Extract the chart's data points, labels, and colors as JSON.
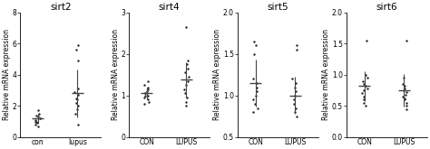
{
  "panels": [
    {
      "title": "sirt2",
      "xlabel_con": "con",
      "xlabel_lupus": "lupus",
      "ylim": [
        0,
        8
      ],
      "yticks": [
        0,
        2,
        4,
        6,
        8
      ],
      "ylabel": "Relative mRNA expression",
      "con_points": [
        1.7,
        1.5,
        1.4,
        1.3,
        1.2,
        1.2,
        1.1,
        1.0,
        1.0,
        0.9,
        0.8,
        0.7
      ],
      "lupus_points": [
        5.9,
        5.6,
        4.9,
        3.1,
        2.9,
        2.7,
        2.5,
        2.4,
        2.2,
        2.0,
        1.8,
        1.5,
        0.8
      ],
      "con_mean": 1.2,
      "con_sd": 0.28,
      "lupus_mean": 2.8,
      "lupus_sd": 1.55
    },
    {
      "title": "sirt4",
      "xlabel_con": "CON",
      "xlabel_lupus": "LUPUS",
      "ylim": [
        0,
        3
      ],
      "yticks": [
        0,
        1,
        2,
        3
      ],
      "ylabel": "Relative mRNA expression",
      "con_points": [
        1.35,
        1.25,
        1.2,
        1.15,
        1.1,
        1.05,
        1.05,
        1.0,
        1.0,
        0.95,
        0.9,
        0.85,
        0.8
      ],
      "lupus_points": [
        2.65,
        1.85,
        1.75,
        1.65,
        1.55,
        1.45,
        1.35,
        1.25,
        1.15,
        1.05,
        0.95,
        0.85,
        0.75
      ],
      "con_mean": 1.05,
      "con_sd": 0.15,
      "lupus_mean": 1.38,
      "lupus_sd": 0.42
    },
    {
      "title": "sirt5",
      "xlabel_con": "CON",
      "xlabel_lupus": "LUPUS",
      "ylim": [
        0.5,
        2.0
      ],
      "yticks": [
        0.5,
        1.0,
        1.5,
        2.0
      ],
      "ylabel": "Relative mRNA expression",
      "con_points": [
        1.65,
        1.6,
        1.5,
        1.2,
        1.15,
        1.1,
        1.05,
        1.0,
        0.95,
        0.9,
        0.85,
        0.8
      ],
      "lupus_points": [
        1.6,
        1.55,
        1.2,
        1.15,
        1.1,
        1.05,
        1.0,
        0.95,
        0.9,
        0.85,
        0.8,
        0.75
      ],
      "con_mean": 1.15,
      "con_sd": 0.28,
      "lupus_mean": 1.0,
      "lupus_sd": 0.22
    },
    {
      "title": "sirt6",
      "xlabel_con": "CON",
      "xlabel_lupus": "LUPUS",
      "ylim": [
        0.0,
        2.0
      ],
      "yticks": [
        0.0,
        0.5,
        1.0,
        1.5,
        2.0
      ],
      "ylabel": "Relative mRNA expression",
      "con_points": [
        1.55,
        1.0,
        0.95,
        0.9,
        0.85,
        0.82,
        0.78,
        0.75,
        0.7,
        0.65,
        0.6,
        0.55,
        0.5
      ],
      "lupus_points": [
        1.55,
        0.95,
        0.85,
        0.82,
        0.78,
        0.75,
        0.72,
        0.68,
        0.65,
        0.62,
        0.6,
        0.55,
        0.5,
        0.45
      ],
      "con_mean": 0.82,
      "con_sd": 0.24,
      "lupus_mean": 0.75,
      "lupus_sd": 0.26
    }
  ],
  "dot_color": "#222222",
  "dot_size": 3,
  "line_color": "#444444",
  "errorbar_color": "#444444",
  "title_fontsize": 7.5,
  "tick_fontsize": 5.5,
  "ylabel_fontsize": 5.5
}
